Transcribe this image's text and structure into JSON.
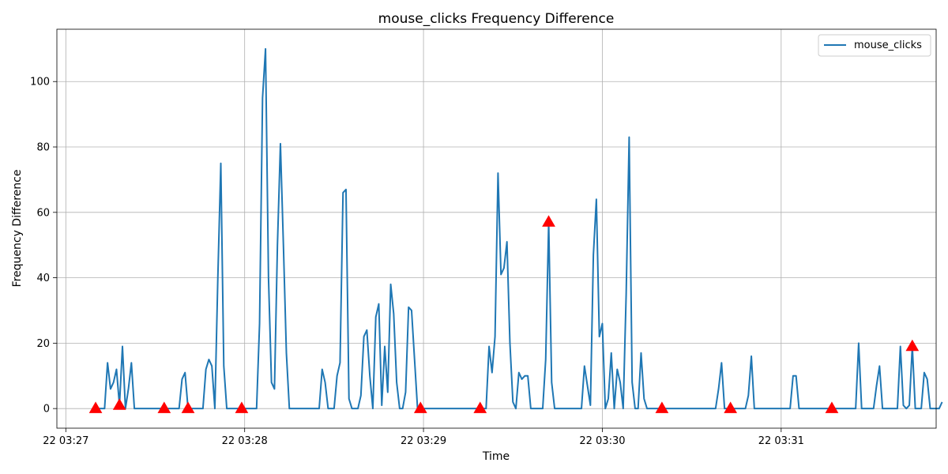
{
  "chart_data": {
    "type": "line",
    "title": "mouse_clicks Frequency Difference",
    "xlabel": "Time",
    "ylabel": "Frequency Difference",
    "x_unit": "seconds after 03:27:00",
    "xlim": [
      -3,
      292
    ],
    "ylim": [
      -6,
      116
    ],
    "grid": true,
    "legend_position": "top-right",
    "x_ticks": [
      {
        "value": 0,
        "label": "22 03:27"
      },
      {
        "value": 60,
        "label": "22 03:28"
      },
      {
        "value": 120,
        "label": "22 03:29"
      },
      {
        "value": 180,
        "label": "22 03:30"
      },
      {
        "value": 240,
        "label": "22 03:31"
      }
    ],
    "y_ticks": [
      0,
      20,
      40,
      60,
      80,
      100
    ],
    "series": [
      {
        "name": "mouse_clicks",
        "color": "#1f77b4",
        "points": [
          [
            10,
            0
          ],
          [
            11,
            0
          ],
          [
            12,
            0
          ],
          [
            13,
            0
          ],
          [
            14,
            14
          ],
          [
            15,
            6
          ],
          [
            16,
            8
          ],
          [
            17,
            12
          ],
          [
            18,
            1
          ],
          [
            19,
            19
          ],
          [
            20,
            0
          ],
          [
            21,
            6
          ],
          [
            22,
            14
          ],
          [
            23,
            0
          ],
          [
            24,
            0
          ],
          [
            25,
            0
          ],
          [
            26,
            0
          ],
          [
            27,
            0
          ],
          [
            28,
            0
          ],
          [
            29,
            0
          ],
          [
            30,
            0
          ],
          [
            31,
            0
          ],
          [
            32,
            0
          ],
          [
            33,
            0
          ],
          [
            34,
            0
          ],
          [
            35,
            0
          ],
          [
            36,
            0
          ],
          [
            37,
            0
          ],
          [
            38,
            0
          ],
          [
            39,
            9
          ],
          [
            40,
            11
          ],
          [
            41,
            0
          ],
          [
            42,
            0
          ],
          [
            43,
            0
          ],
          [
            44,
            0
          ],
          [
            45,
            0
          ],
          [
            46,
            0
          ],
          [
            47,
            12
          ],
          [
            48,
            15
          ],
          [
            49,
            13
          ],
          [
            50,
            0
          ],
          [
            51,
            40
          ],
          [
            52,
            75
          ],
          [
            53,
            13
          ],
          [
            54,
            0
          ],
          [
            55,
            0
          ],
          [
            56,
            0
          ],
          [
            57,
            0
          ],
          [
            58,
            0
          ],
          [
            59,
            0
          ],
          [
            60,
            0
          ],
          [
            61,
            0
          ],
          [
            62,
            0
          ],
          [
            63,
            0
          ],
          [
            64,
            0
          ],
          [
            65,
            26
          ],
          [
            66,
            95
          ],
          [
            67,
            110
          ],
          [
            68,
            40
          ],
          [
            69,
            8
          ],
          [
            70,
            6
          ],
          [
            71,
            50
          ],
          [
            72,
            81
          ],
          [
            73,
            50
          ],
          [
            74,
            17
          ],
          [
            75,
            0
          ],
          [
            76,
            0
          ],
          [
            77,
            0
          ],
          [
            78,
            0
          ],
          [
            79,
            0
          ],
          [
            80,
            0
          ],
          [
            81,
            0
          ],
          [
            82,
            0
          ],
          [
            83,
            0
          ],
          [
            84,
            0
          ],
          [
            85,
            0
          ],
          [
            86,
            12
          ],
          [
            87,
            8
          ],
          [
            88,
            0
          ],
          [
            89,
            0
          ],
          [
            90,
            0
          ],
          [
            91,
            10
          ],
          [
            92,
            14
          ],
          [
            93,
            66
          ],
          [
            94,
            67
          ],
          [
            95,
            3
          ],
          [
            96,
            0
          ],
          [
            97,
            0
          ],
          [
            98,
            0
          ],
          [
            99,
            4
          ],
          [
            100,
            22
          ],
          [
            101,
            24
          ],
          [
            102,
            10
          ],
          [
            103,
            0
          ],
          [
            104,
            28
          ],
          [
            105,
            32
          ],
          [
            106,
            1
          ],
          [
            107,
            19
          ],
          [
            108,
            5
          ],
          [
            109,
            38
          ],
          [
            110,
            29
          ],
          [
            111,
            8
          ],
          [
            112,
            0
          ],
          [
            113,
            0
          ],
          [
            114,
            5
          ],
          [
            115,
            31
          ],
          [
            116,
            30
          ],
          [
            117,
            15
          ],
          [
            118,
            0
          ],
          [
            119,
            0
          ],
          [
            120,
            0
          ],
          [
            121,
            0
          ],
          [
            122,
            0
          ],
          [
            123,
            0
          ],
          [
            124,
            0
          ],
          [
            125,
            0
          ],
          [
            126,
            0
          ],
          [
            127,
            0
          ],
          [
            128,
            0
          ],
          [
            129,
            0
          ],
          [
            130,
            0
          ],
          [
            131,
            0
          ],
          [
            132,
            0
          ],
          [
            133,
            0
          ],
          [
            134,
            0
          ],
          [
            135,
            0
          ],
          [
            136,
            0
          ],
          [
            137,
            0
          ],
          [
            138,
            0
          ],
          [
            139,
            0
          ],
          [
            140,
            0
          ],
          [
            141,
            0
          ],
          [
            142,
            19
          ],
          [
            143,
            11
          ],
          [
            144,
            22
          ],
          [
            145,
            72
          ],
          [
            146,
            41
          ],
          [
            147,
            43
          ],
          [
            148,
            51
          ],
          [
            149,
            20
          ],
          [
            150,
            2
          ],
          [
            151,
            0
          ],
          [
            152,
            11
          ],
          [
            153,
            9
          ],
          [
            154,
            10
          ],
          [
            155,
            10
          ],
          [
            156,
            0
          ],
          [
            157,
            0
          ],
          [
            158,
            0
          ],
          [
            159,
            0
          ],
          [
            160,
            0
          ],
          [
            161,
            15
          ],
          [
            162,
            57
          ],
          [
            163,
            8
          ],
          [
            164,
            0
          ],
          [
            165,
            0
          ],
          [
            166,
            0
          ],
          [
            167,
            0
          ],
          [
            168,
            0
          ],
          [
            169,
            0
          ],
          [
            170,
            0
          ],
          [
            171,
            0
          ],
          [
            172,
            0
          ],
          [
            173,
            0
          ],
          [
            174,
            13
          ],
          [
            175,
            7
          ],
          [
            176,
            1
          ],
          [
            177,
            47
          ],
          [
            178,
            64
          ],
          [
            179,
            22
          ],
          [
            180,
            26
          ],
          [
            181,
            0
          ],
          [
            182,
            3
          ],
          [
            183,
            17
          ],
          [
            184,
            0
          ],
          [
            185,
            12
          ],
          [
            186,
            8
          ],
          [
            187,
            0
          ],
          [
            188,
            35
          ],
          [
            189,
            83
          ],
          [
            190,
            8
          ],
          [
            191,
            0
          ],
          [
            192,
            0
          ],
          [
            193,
            17
          ],
          [
            194,
            3
          ],
          [
            195,
            0
          ],
          [
            196,
            0
          ],
          [
            197,
            0
          ],
          [
            198,
            0
          ],
          [
            199,
            0
          ],
          [
            200,
            0
          ],
          [
            201,
            0
          ],
          [
            202,
            0
          ],
          [
            203,
            0
          ],
          [
            204,
            0
          ],
          [
            205,
            0
          ],
          [
            206,
            0
          ],
          [
            207,
            0
          ],
          [
            208,
            0
          ],
          [
            209,
            0
          ],
          [
            210,
            0
          ],
          [
            211,
            0
          ],
          [
            212,
            0
          ],
          [
            213,
            0
          ],
          [
            214,
            0
          ],
          [
            215,
            0
          ],
          [
            216,
            0
          ],
          [
            217,
            0
          ],
          [
            218,
            0
          ],
          [
            219,
            6
          ],
          [
            220,
            14
          ],
          [
            221,
            0
          ],
          [
            222,
            0
          ],
          [
            223,
            0
          ],
          [
            224,
            0
          ],
          [
            225,
            0
          ],
          [
            226,
            0
          ],
          [
            227,
            0
          ],
          [
            228,
            0
          ],
          [
            229,
            4
          ],
          [
            230,
            16
          ],
          [
            231,
            0
          ],
          [
            232,
            0
          ],
          [
            233,
            0
          ],
          [
            234,
            0
          ],
          [
            235,
            0
          ],
          [
            236,
            0
          ],
          [
            237,
            0
          ],
          [
            238,
            0
          ],
          [
            239,
            0
          ],
          [
            240,
            0
          ],
          [
            241,
            0
          ],
          [
            242,
            0
          ],
          [
            243,
            0
          ],
          [
            244,
            10
          ],
          [
            245,
            10
          ],
          [
            246,
            0
          ],
          [
            247,
            0
          ],
          [
            248,
            0
          ],
          [
            249,
            0
          ],
          [
            250,
            0
          ],
          [
            251,
            0
          ],
          [
            252,
            0
          ],
          [
            253,
            0
          ],
          [
            254,
            0
          ],
          [
            255,
            0
          ],
          [
            256,
            0
          ],
          [
            257,
            0
          ],
          [
            258,
            0
          ],
          [
            259,
            0
          ],
          [
            260,
            0
          ],
          [
            261,
            0
          ],
          [
            262,
            0
          ],
          [
            263,
            0
          ],
          [
            264,
            0
          ],
          [
            265,
            0
          ],
          [
            266,
            20
          ],
          [
            267,
            0
          ],
          [
            268,
            0
          ],
          [
            269,
            0
          ],
          [
            270,
            0
          ],
          [
            271,
            0
          ],
          [
            272,
            7
          ],
          [
            273,
            13
          ],
          [
            274,
            0
          ],
          [
            275,
            0
          ],
          [
            276,
            0
          ],
          [
            277,
            0
          ],
          [
            278,
            0
          ],
          [
            279,
            0
          ],
          [
            280,
            19
          ],
          [
            281,
            1
          ],
          [
            282,
            0
          ],
          [
            283,
            1
          ],
          [
            284,
            19
          ],
          [
            285,
            0
          ],
          [
            286,
            0
          ],
          [
            287,
            0
          ],
          [
            288,
            11
          ],
          [
            289,
            9
          ],
          [
            290,
            0
          ],
          [
            291,
            0
          ],
          [
            292,
            0
          ],
          [
            293,
            0
          ],
          [
            294,
            2
          ]
        ]
      }
    ],
    "markers": {
      "shape": "triangle-up",
      "color": "#ff0000",
      "points": [
        [
          10,
          0
        ],
        [
          18,
          1
        ],
        [
          33,
          0
        ],
        [
          41,
          0
        ],
        [
          59,
          0
        ],
        [
          119,
          0
        ],
        [
          139,
          0
        ],
        [
          162,
          57
        ],
        [
          200,
          0
        ],
        [
          223,
          0
        ],
        [
          257,
          0
        ],
        [
          284,
          19
        ]
      ]
    }
  }
}
